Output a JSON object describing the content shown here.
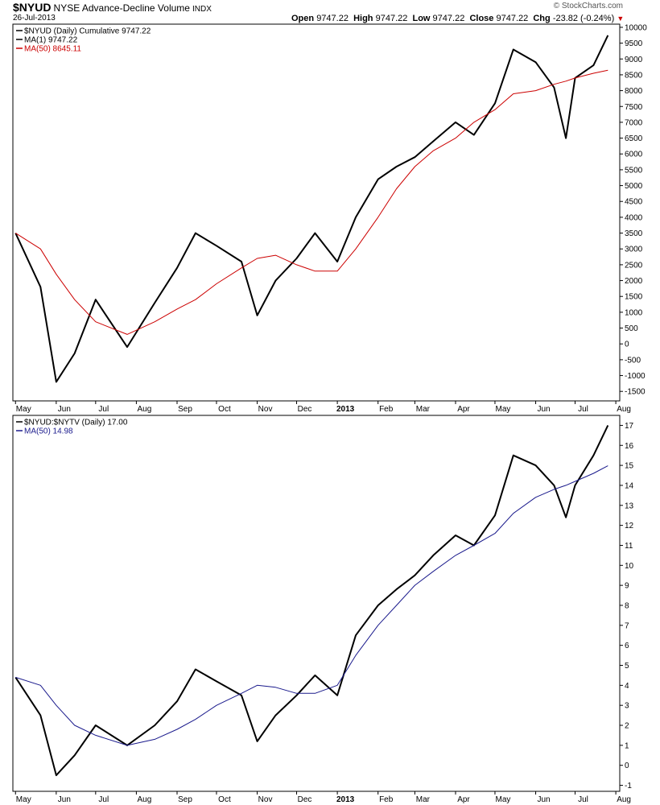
{
  "header": {
    "symbol": "$NYUD",
    "title": "NYSE Advance-Decline Volume",
    "exchange": "INDX",
    "date": "26-Jul-2013",
    "watermark": "© StockCharts.com",
    "open_label": "Open",
    "open_value": "9747.22",
    "high_label": "High",
    "high_value": "9747.22",
    "low_label": "Low",
    "low_value": "9747.22",
    "close_label": "Close",
    "close_value": "9747.22",
    "chg_label": "Chg",
    "chg_value": "-23.82 (-0.24%)",
    "down_color": "#cc0000"
  },
  "x_axis": {
    "labels": [
      "May",
      "Jun",
      "Jul",
      "Aug",
      "Sep",
      "Oct",
      "Nov",
      "Dec",
      "2013",
      "Feb",
      "Mar",
      "Apr",
      "May",
      "Jun",
      "Jul",
      "Aug"
    ]
  },
  "chart_data": [
    {
      "type": "line",
      "legend": [
        {
          "text": "$NYUD (Daily) Cumulative 9747.22",
          "color": "#000000"
        },
        {
          "text": "MA(1) 9747.22",
          "color": "#000000"
        },
        {
          "text": "MA(50) 8645.11",
          "color": "#cc0000"
        }
      ],
      "ylim": [
        -1800,
        10100
      ],
      "yticks": [
        -1500,
        -1000,
        -500,
        0,
        500,
        1000,
        1500,
        2000,
        2500,
        3000,
        3500,
        4000,
        4500,
        5000,
        5500,
        6000,
        6500,
        7000,
        7500,
        8000,
        8500,
        9000,
        9500,
        10000
      ],
      "x_dates": [
        "2012-05-01",
        "2012-05-20",
        "2012-06-01",
        "2012-06-15",
        "2012-07-01",
        "2012-07-25",
        "2012-08-15",
        "2012-09-01",
        "2012-09-15",
        "2012-10-01",
        "2012-10-20",
        "2012-11-01",
        "2012-11-15",
        "2012-12-01",
        "2012-12-15",
        "2013-01-01",
        "2013-01-15",
        "2013-02-01",
        "2013-02-15",
        "2013-03-01",
        "2013-03-15",
        "2013-04-01",
        "2013-04-15",
        "2013-05-01",
        "2013-05-15",
        "2013-06-01",
        "2013-06-15",
        "2013-06-24",
        "2013-07-01",
        "2013-07-15",
        "2013-07-26"
      ],
      "series": [
        {
          "name": "$NYUD",
          "color": "#000000",
          "values": [
            3500,
            1800,
            -1200,
            -300,
            1400,
            -100,
            1300,
            2400,
            3500,
            3100,
            2600,
            900,
            2000,
            2700,
            3500,
            2600,
            4000,
            5200,
            5600,
            5900,
            6400,
            7000,
            6600,
            7600,
            9300,
            8900,
            8100,
            6500,
            8400,
            8800,
            9747
          ]
        },
        {
          "name": "MA(50)",
          "color": "#cc0000",
          "values": [
            3500,
            3000,
            2200,
            1400,
            700,
            300,
            700,
            1100,
            1400,
            1900,
            2400,
            2700,
            2800,
            2500,
            2300,
            2300,
            3000,
            4000,
            4900,
            5600,
            6100,
            6500,
            7000,
            7400,
            7900,
            8000,
            8200,
            8300,
            8400,
            8550,
            8645
          ]
        }
      ]
    },
    {
      "type": "line",
      "legend": [
        {
          "text": "$NYUD:$NYTV (Daily) 17.00",
          "color": "#000000"
        },
        {
          "text": "MA(50) 14.98",
          "color": "#1a1a8c"
        }
      ],
      "ylim": [
        -1.3,
        17.5
      ],
      "yticks": [
        -1,
        0,
        1,
        2,
        3,
        4,
        5,
        6,
        7,
        8,
        9,
        10,
        11,
        12,
        13,
        14,
        15,
        16,
        17
      ],
      "x_dates": [
        "2012-05-01",
        "2012-05-20",
        "2012-06-01",
        "2012-06-15",
        "2012-07-01",
        "2012-07-25",
        "2012-08-15",
        "2012-09-01",
        "2012-09-15",
        "2012-10-01",
        "2012-10-20",
        "2012-11-01",
        "2012-11-15",
        "2012-12-01",
        "2012-12-15",
        "2013-01-01",
        "2013-01-15",
        "2013-02-01",
        "2013-02-15",
        "2013-03-01",
        "2013-03-15",
        "2013-04-01",
        "2013-04-15",
        "2013-05-01",
        "2013-05-15",
        "2013-06-01",
        "2013-06-15",
        "2013-06-24",
        "2013-07-01",
        "2013-07-15",
        "2013-07-26"
      ],
      "series": [
        {
          "name": "$NYUD:$NYTV",
          "color": "#000000",
          "values": [
            4.4,
            2.5,
            -0.5,
            0.5,
            2.0,
            1.0,
            2.0,
            3.2,
            4.8,
            4.2,
            3.5,
            1.2,
            2.5,
            3.5,
            4.5,
            3.5,
            6.5,
            8.0,
            8.8,
            9.5,
            10.5,
            11.5,
            11.0,
            12.5,
            15.5,
            15.0,
            14.0,
            12.4,
            14.0,
            15.5,
            17.0
          ]
        },
        {
          "name": "MA(50)",
          "color": "#1a1a8c",
          "values": [
            4.4,
            4.0,
            3.0,
            2.0,
            1.5,
            1.0,
            1.3,
            1.8,
            2.3,
            3.0,
            3.6,
            4.0,
            3.9,
            3.6,
            3.6,
            4.0,
            5.5,
            7.0,
            8.0,
            9.0,
            9.7,
            10.5,
            11.0,
            11.6,
            12.6,
            13.4,
            13.8,
            14.0,
            14.2,
            14.6,
            14.98
          ]
        }
      ]
    }
  ]
}
